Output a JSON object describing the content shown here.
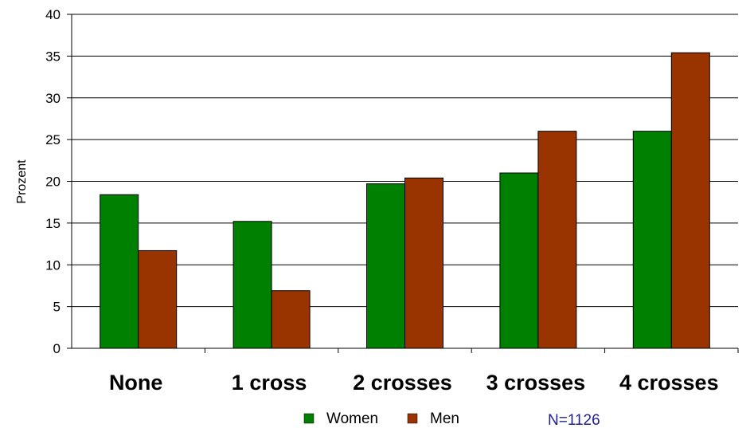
{
  "chart_data": {
    "type": "bar",
    "categories": [
      "None",
      "1 cross",
      "2 crosses",
      "3 crosses",
      "4 crosses"
    ],
    "series": [
      {
        "name": "Women",
        "color": "#008000",
        "values": [
          18.4,
          15.2,
          19.7,
          21.0,
          26.0
        ]
      },
      {
        "name": "Men",
        "color": "#993300",
        "values": [
          11.7,
          6.9,
          20.4,
          26.0,
          35.4
        ]
      }
    ],
    "title": "",
    "xlabel": "",
    "ylabel": "Prozent",
    "ylim": [
      0,
      40
    ],
    "yticks": [
      "0",
      "5",
      "10",
      "15",
      "20",
      "25",
      "30",
      "35",
      "40"
    ],
    "grid": true,
    "legend_position": "bottom",
    "annotation": "N=1126",
    "annotation_color": "#1f1f8f"
  }
}
